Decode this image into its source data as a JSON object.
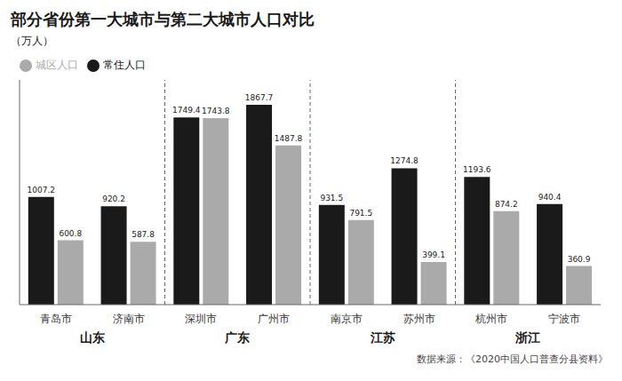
{
  "chart_data": {
    "type": "bar",
    "title": "部分省份第一大城市与第二大城市人口对比",
    "ylabel": "（万人）",
    "categories": [
      "青岛市",
      "济南市",
      "深圳市",
      "广州市",
      "南京市",
      "苏州市",
      "杭州市",
      "宁波市"
    ],
    "groups": [
      {
        "name": "山东",
        "categories": [
          "青岛市",
          "济南市"
        ]
      },
      {
        "name": "广东",
        "categories": [
          "深圳市",
          "广州市"
        ]
      },
      {
        "name": "江苏",
        "categories": [
          "南京市",
          "苏州市"
        ]
      },
      {
        "name": "浙江",
        "categories": [
          "杭州市",
          "宁波市"
        ]
      }
    ],
    "series": [
      {
        "name": "常住人口",
        "color": "#1a1a1a",
        "values": [
          1007.2,
          920.2,
          1749.4,
          1867.7,
          931.5,
          1274.8,
          1193.6,
          940.4
        ]
      },
      {
        "name": "城区人口",
        "color": "#aaaaaa",
        "values": [
          600.8,
          587.8,
          1743.8,
          1487.8,
          791.5,
          399.1,
          874.2,
          360.9
        ]
      }
    ],
    "ylim": [
      0,
      2100
    ],
    "grid": false,
    "data_labels": true,
    "tick_labels": "x",
    "annotations": [
      "数据来源：《2020中国人口普查分县资料》"
    ]
  }
}
